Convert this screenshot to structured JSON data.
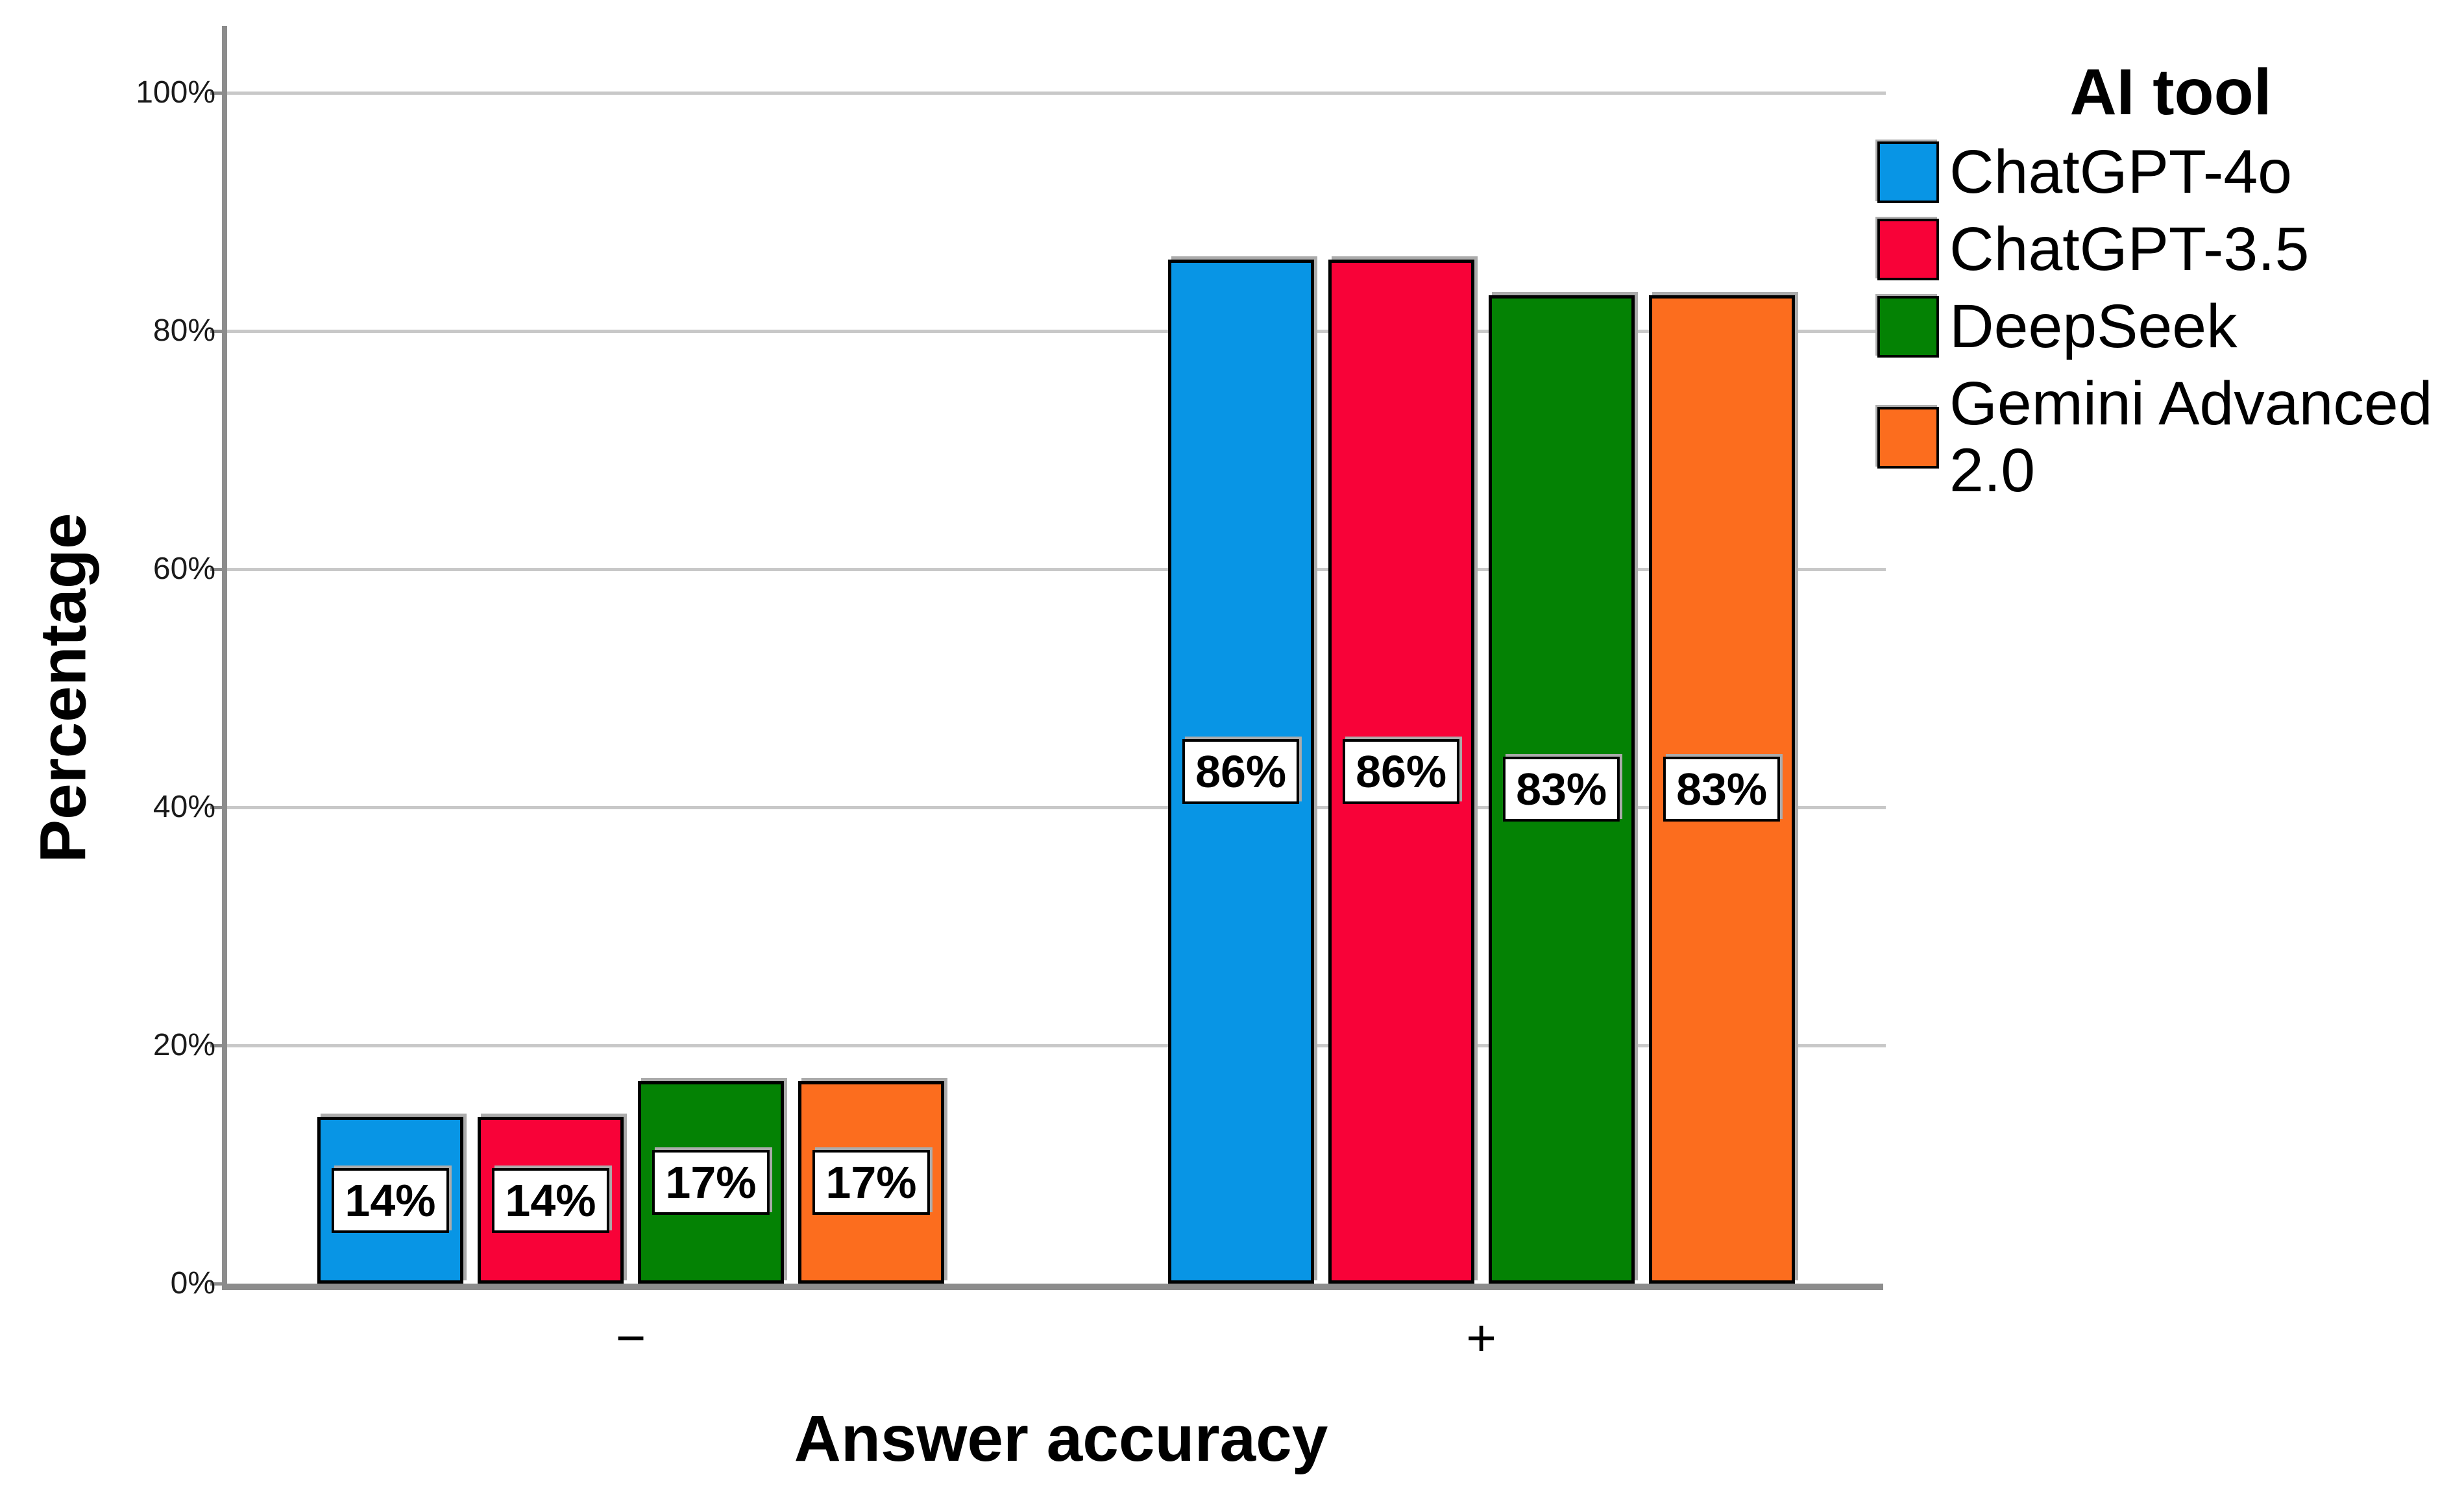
{
  "chart_data": {
    "type": "bar",
    "title": "",
    "xlabel": "Answer accuracy",
    "ylabel": "Percentage",
    "categories": [
      "−",
      "+"
    ],
    "series": [
      {
        "name": "ChatGPT-4o",
        "color": "#0895e5",
        "values": [
          14,
          86
        ]
      },
      {
        "name": "ChatGPT-3.5",
        "color": "#f80238",
        "values": [
          14,
          86
        ]
      },
      {
        "name": "DeepSeek",
        "color": "#048204",
        "values": [
          17,
          83
        ]
      },
      {
        "name": "Gemini Advanced 2.0",
        "color": "#fc6d1e",
        "values": [
          17,
          83
        ]
      }
    ],
    "value_labels": [
      [
        "14%",
        "14%",
        "17%",
        "17%"
      ],
      [
        "86%",
        "86%",
        "83%",
        "83%"
      ]
    ],
    "y_ticks": [
      "0%",
      "20%",
      "40%",
      "60%",
      "80%",
      "100%"
    ],
    "ylim": [
      0,
      100
    ],
    "grid": true,
    "legend_title": "AI tool",
    "legend_position": "right",
    "colors": {
      "axis": "#8c8c8c",
      "gridline": "#c8c8c8",
      "bar_border": "#000000",
      "label_box_bg": "#ffffff",
      "text": "#000000"
    }
  }
}
